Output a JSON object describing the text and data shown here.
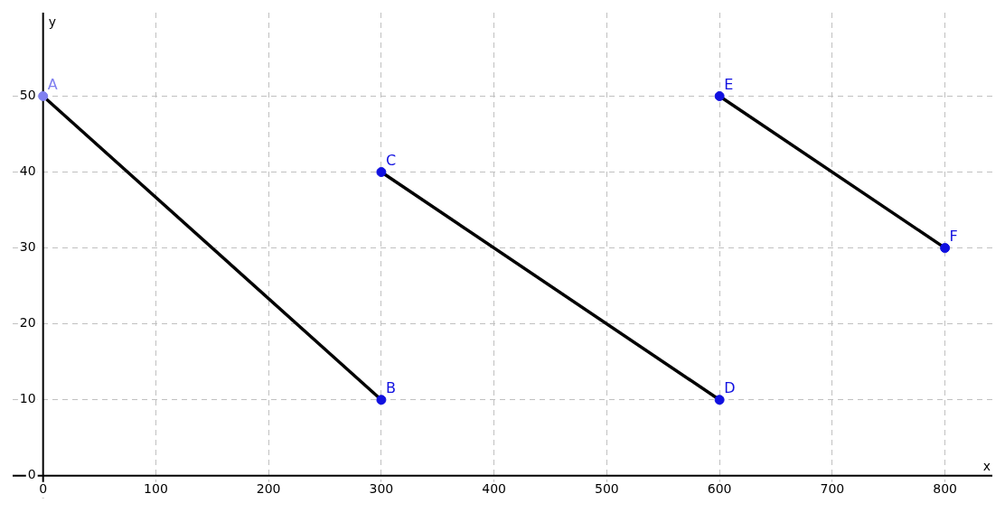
{
  "chart_data": {
    "type": "line",
    "xlabel": "x",
    "ylabel": "y",
    "xlim": [
      -27,
      842
    ],
    "ylim": [
      -3,
      61
    ],
    "xticks": [
      0,
      100,
      200,
      300,
      400,
      500,
      600,
      700,
      800
    ],
    "yticks": [
      0,
      10,
      20,
      30,
      40,
      50
    ],
    "grid": true,
    "marker": "circle",
    "line_style": "solid",
    "series": [
      {
        "x": [
          0,
          300
        ],
        "values": [
          50,
          10
        ],
        "color": "#000000",
        "marker": "none"
      },
      {
        "x": [
          300,
          600
        ],
        "values": [
          40,
          10
        ],
        "color": "#000000",
        "marker": "none"
      },
      {
        "x": [
          600,
          800
        ],
        "values": [
          50,
          30
        ],
        "color": "#000000",
        "marker": "none"
      },
      {
        "type": "scatter",
        "x": [
          0,
          300,
          300,
          600,
          600,
          800
        ],
        "values": [
          50,
          10,
          40,
          10,
          50,
          30
        ],
        "color": "#1010e0",
        "colors": [
          "#8080f0",
          "#1010e0",
          "#1010e0",
          "#1010e0",
          "#1010e0",
          "#1010e0"
        ]
      }
    ],
    "annotations": [
      {
        "text": "A",
        "x": 0,
        "y": 50
      },
      {
        "text": "B",
        "x": 300,
        "y": 10
      },
      {
        "text": "C",
        "x": 300,
        "y": 40
      },
      {
        "text": "D",
        "x": 600,
        "y": 10
      },
      {
        "text": "E",
        "x": 600,
        "y": 50
      },
      {
        "text": "F",
        "x": 800,
        "y": 30
      }
    ]
  }
}
